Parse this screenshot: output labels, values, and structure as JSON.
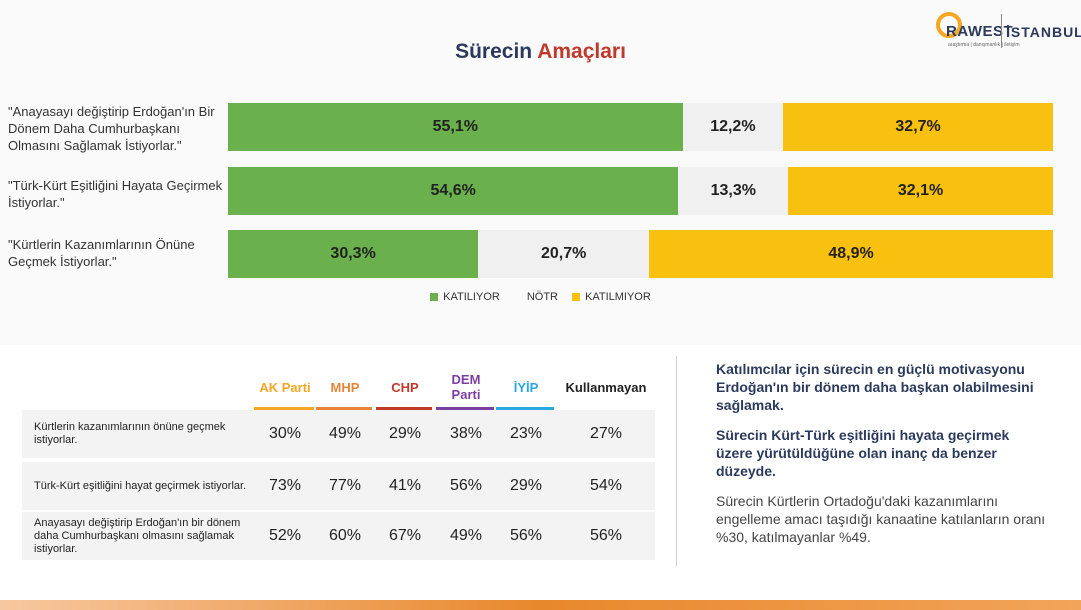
{
  "title": {
    "part1": "Sürecin ",
    "part2": "Amaçları"
  },
  "logo": {
    "name": "RAWEST",
    "city": "İSTANBUL",
    "sub": "araştırma | danışmanlık | iletişim"
  },
  "colors": {
    "agree": "#6ab04c",
    "neutral": "#f0f0f0",
    "disagree": "#f9c10f"
  },
  "chart_data": {
    "type": "bar",
    "orientation": "horizontal-stacked-100",
    "title": "Sürecin Amaçları",
    "categories": [
      "\"Anayasayı değiştirip Erdoğan'ın Bir Dönem Daha Cumhurbaşkanı Olmasını Sağlamak İstiyorlar.\"",
      "\"Türk-Kürt Eşitliğini Hayata Geçirmek İstiyorlar.\"",
      "\"Kürtlerin Kazanımlarının Önüne Geçmek İstiyorlar.\""
    ],
    "series": [
      {
        "name": "KATILIYOR",
        "values": [
          55.1,
          54.6,
          30.3
        ],
        "labels": [
          "55,1%",
          "54,6%",
          "30,3%"
        ]
      },
      {
        "name": "NÖTR",
        "values": [
          12.2,
          13.3,
          20.7
        ],
        "labels": [
          "12,2%",
          "13,3%",
          "20,7%"
        ]
      },
      {
        "name": "KATILMIYOR",
        "values": [
          32.7,
          32.1,
          48.9
        ],
        "labels": [
          "32,7%",
          "32,1%",
          "48,9%"
        ]
      }
    ],
    "legend": "bottom-center"
  },
  "table": {
    "headers": [
      {
        "label": "AK Parti",
        "color": "#f5a623"
      },
      {
        "label": "MHP",
        "color": "#e8833a"
      },
      {
        "label": "CHP",
        "color": "#c0392b"
      },
      {
        "label": "DEM Parti",
        "color": "#7b3fa0"
      },
      {
        "label": "İYİP",
        "color": "#29a8e0"
      },
      {
        "label": "Kullanmayan",
        "color": "#222222"
      }
    ],
    "rows": [
      {
        "label": "Kürtlerin kazanımlarının önüne geçmek istiyorlar.",
        "values": [
          "30%",
          "49%",
          "29%",
          "38%",
          "23%",
          "27%"
        ]
      },
      {
        "label": "Türk-Kürt eşitliğini hayat geçirmek istiyorlar.",
        "values": [
          "73%",
          "77%",
          "41%",
          "56%",
          "29%",
          "54%"
        ]
      },
      {
        "label": "Anayasayı değiştirip Erdoğan'ın bir dönem daha Cumhurbaşkanı olmasını sağlamak istiyorlar.",
        "values": [
          "52%",
          "60%",
          "67%",
          "49%",
          "56%",
          "56%"
        ]
      }
    ]
  },
  "notes": [
    {
      "text": "Katılımcılar için sürecin en güçlü motivasyonu Erdoğan'ın bir dönem daha başkan olabilmesini sağlamak.",
      "bold": true
    },
    {
      "text": "Sürecin Kürt-Türk eşitliğini hayata geçirmek üzere yürütüldüğüne olan inanç da benzer düzeyde.",
      "bold": true
    },
    {
      "text": "Sürecin Kürtlerin Ortadoğu'daki kazanımlarını engelleme amacı taşıdığı kanaatine katılanların oranı %30, katılmayanlar %49.",
      "bold": false
    }
  ]
}
